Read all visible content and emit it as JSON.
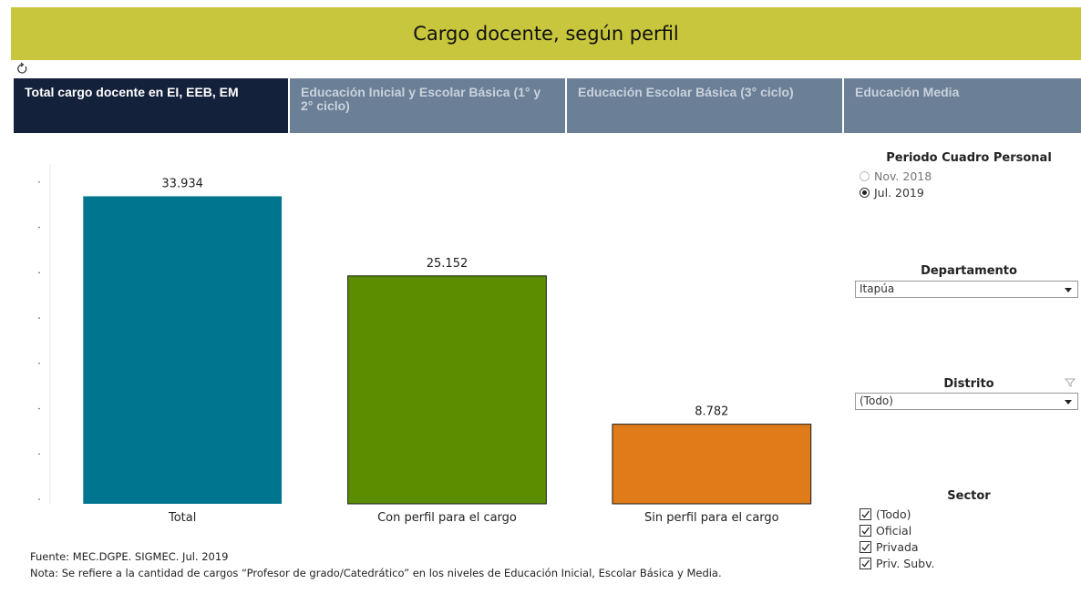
{
  "header": {
    "title": "Cargo docente, según perfil"
  },
  "tabs": [
    {
      "label": "Total cargo docente en EI, EEB, EM",
      "active": true
    },
    {
      "label": "Educación Inicial y Escolar Básica (1° y 2° ciclo)",
      "active": false
    },
    {
      "label": "Educación Escolar Básica (3° ciclo)",
      "active": false
    },
    {
      "label": "Educación Media",
      "active": false
    }
  ],
  "chart_data": {
    "type": "bar",
    "categories": [
      "Total",
      "Con perfil para el cargo",
      "Sin perfil para el cargo"
    ],
    "values": [
      33934,
      25152,
      8782
    ],
    "value_labels": [
      "33.934",
      "25.152",
      "8.782"
    ],
    "colors": [
      "#00758f",
      "#5a8e00",
      "#e07b1a"
    ],
    "ylim": [
      0,
      37500
    ],
    "yticks": [
      0,
      5000,
      10000,
      15000,
      20000,
      25000,
      30000,
      35000
    ]
  },
  "filters": {
    "periodo": {
      "title": "Periodo Cuadro Personal",
      "options": [
        "Nov. 2018",
        "Jul. 2019"
      ],
      "selected": 1
    },
    "departamento": {
      "title": "Departamento",
      "value": "Itapúa"
    },
    "distrito": {
      "title": "Distrito",
      "value": "(Todo)"
    },
    "sector": {
      "title": "Sector",
      "options": [
        "(Todo)",
        "Oficial",
        "Privada",
        "Priv. Subv."
      ],
      "checked": [
        true,
        true,
        true,
        true
      ]
    }
  },
  "footer": {
    "source_label": "Fuente:",
    "source": "MEC.DGPE. SIGMEC.  Jul. 2019",
    "note_label": "Nota:",
    "note": "Se refiere a la cantidad de cargos “Profesor de grado/Catedrático” en los niveles de Educación Inicial, Escolar Básica y Media."
  }
}
